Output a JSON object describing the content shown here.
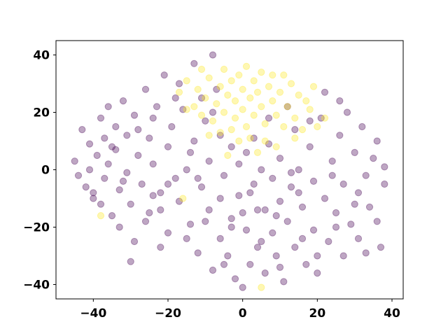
{
  "chart_data": {
    "type": "scatter",
    "title": "",
    "xlabel": "",
    "ylabel": "",
    "xlim": [
      -50,
      43
    ],
    "ylim": [
      -45,
      45
    ],
    "xticks": [
      -40,
      -20,
      0,
      20,
      40
    ],
    "yticks": [
      -40,
      -20,
      0,
      20,
      40
    ],
    "xtick_labels": [
      "−40",
      "−20",
      "0",
      "20",
      "40"
    ],
    "ytick_labels": [
      "−40",
      "−20",
      "0",
      "20",
      "40"
    ],
    "grid": false,
    "point_alpha": 0.35,
    "series": [
      {
        "color": "#440154",
        "points": [
          [
            -45,
            3
          ],
          [
            -44,
            -2
          ],
          [
            -43,
            14
          ],
          [
            -42,
            -6
          ],
          [
            -41,
            9
          ],
          [
            -41,
            0
          ],
          [
            -40,
            -8
          ],
          [
            -39,
            5
          ],
          [
            -38,
            18
          ],
          [
            -38,
            -12
          ],
          [
            -37,
            11
          ],
          [
            -37,
            -3
          ],
          [
            -36,
            22
          ],
          [
            -36,
            2
          ],
          [
            -35,
            -16
          ],
          [
            -34,
            15
          ],
          [
            -34,
            7
          ],
          [
            -33,
            -7
          ],
          [
            -33,
            -20
          ],
          [
            -32,
            24
          ],
          [
            -31,
            12
          ],
          [
            -31,
            -1
          ],
          [
            -30,
            -12
          ],
          [
            -29,
            -25
          ],
          [
            -29,
            19
          ],
          [
            -28,
            5
          ],
          [
            -27,
            -5
          ],
          [
            -26,
            28
          ],
          [
            -26,
            -18
          ],
          [
            -25,
            11
          ],
          [
            -24,
            -9
          ],
          [
            -24,
            2
          ],
          [
            -23,
            22
          ],
          [
            -22,
            -27
          ],
          [
            -22,
            -14
          ],
          [
            -21,
            33
          ],
          [
            -20,
            8
          ],
          [
            -20,
            -22
          ],
          [
            -19,
            15
          ],
          [
            -18,
            -3
          ],
          [
            -17,
            30
          ],
          [
            -17,
            -11
          ],
          [
            -16,
            21
          ],
          [
            -15,
            0
          ],
          [
            -14,
            -19
          ],
          [
            -13,
            37
          ],
          [
            -13,
            10
          ],
          [
            -12,
            -29
          ],
          [
            -11,
            25
          ],
          [
            -11,
            -6
          ],
          [
            -10,
            17
          ],
          [
            -9,
            -14
          ],
          [
            -9,
            3
          ],
          [
            -8,
            40
          ],
          [
            -8,
            -35
          ],
          [
            -7,
            28
          ],
          [
            -6,
            -24
          ],
          [
            -6,
            12
          ],
          [
            -5,
            -2
          ],
          [
            -4,
            -30
          ],
          [
            -3,
            8
          ],
          [
            -3,
            -17
          ],
          [
            -2,
            -38
          ],
          [
            -1,
            2
          ],
          [
            -1,
            -9
          ],
          [
            0,
            -41
          ],
          [
            1,
            6
          ],
          [
            1,
            -21
          ],
          [
            2,
            -33
          ],
          [
            3,
            11
          ],
          [
            3,
            -5
          ],
          [
            4,
            -27
          ],
          [
            5,
            0
          ],
          [
            6,
            -14
          ],
          [
            6,
            -36
          ],
          [
            7,
            9
          ],
          [
            8,
            -22
          ],
          [
            8,
            -3
          ],
          [
            9,
            -30
          ],
          [
            10,
            4
          ],
          [
            10,
            -11
          ],
          [
            11,
            -39
          ],
          [
            12,
            -18
          ],
          [
            13,
            -6
          ],
          [
            14,
            -27
          ],
          [
            14,
            14
          ],
          [
            15,
            0
          ],
          [
            16,
            -13
          ],
          [
            17,
            -33
          ],
          [
            18,
            8
          ],
          [
            19,
            -4
          ],
          [
            19,
            -21
          ],
          [
            20,
            -36
          ],
          [
            21,
            18
          ],
          [
            22,
            -10
          ],
          [
            22,
            27
          ],
          [
            23,
            -25
          ],
          [
            24,
            3
          ],
          [
            25,
            -15
          ],
          [
            26,
            12
          ],
          [
            27,
            -30
          ],
          [
            27,
            -5
          ],
          [
            28,
            20
          ],
          [
            29,
            -19
          ],
          [
            30,
            6
          ],
          [
            31,
            -8
          ],
          [
            31,
            -24
          ],
          [
            32,
            15
          ],
          [
            33,
            -2
          ],
          [
            33,
            -29
          ],
          [
            34,
            -13
          ],
          [
            35,
            4
          ],
          [
            36,
            -18
          ],
          [
            36,
            10
          ],
          [
            37,
            -27
          ],
          [
            38,
            -5
          ],
          [
            38,
            1
          ],
          [
            -30,
            -32
          ],
          [
            -15,
            -24
          ],
          [
            -5,
            -33
          ],
          [
            10,
            -34
          ],
          [
            20,
            -30
          ],
          [
            -40,
            -10
          ],
          [
            -20,
            -5
          ],
          [
            0,
            -15
          ],
          [
            15,
            -8
          ],
          [
            25,
            -20
          ],
          [
            -10,
            -18
          ],
          [
            5,
            -25
          ],
          [
            -25,
            -15
          ],
          [
            30,
            -12
          ],
          [
            -35,
            8
          ],
          [
            12,
            22
          ],
          [
            18,
            17
          ],
          [
            -18,
            25
          ],
          [
            -24,
            18
          ],
          [
            -8,
            20
          ],
          [
            26,
            24
          ],
          [
            -28,
            14
          ],
          [
            -12,
            -3
          ],
          [
            2,
            -8
          ],
          [
            9,
            -16
          ],
          [
            -3,
            -20
          ],
          [
            16,
            -24
          ],
          [
            -6,
            -10
          ],
          [
            4,
            -14
          ],
          [
            -14,
            6
          ],
          [
            24,
            -2
          ],
          [
            -22,
            -8
          ],
          [
            7,
            18
          ],
          [
            -32,
            -4
          ],
          [
            13,
            -1
          ]
        ]
      },
      {
        "color": "#fde725",
        "points": [
          [
            -17,
            27
          ],
          [
            -15,
            31
          ],
          [
            -13,
            22
          ],
          [
            -12,
            28
          ],
          [
            -11,
            19
          ],
          [
            -10,
            25
          ],
          [
            -9,
            32
          ],
          [
            -8,
            17
          ],
          [
            -7,
            23
          ],
          [
            -6,
            29
          ],
          [
            -5,
            35
          ],
          [
            -5,
            20
          ],
          [
            -4,
            26
          ],
          [
            -3,
            31
          ],
          [
            -2,
            18
          ],
          [
            -2,
            24
          ],
          [
            -1,
            33
          ],
          [
            0,
            21
          ],
          [
            0,
            28
          ],
          [
            1,
            36
          ],
          [
            1,
            15
          ],
          [
            2,
            25
          ],
          [
            3,
            31
          ],
          [
            3,
            19
          ],
          [
            4,
            27
          ],
          [
            5,
            34
          ],
          [
            5,
            22
          ],
          [
            6,
            16
          ],
          [
            7,
            29
          ],
          [
            8,
            24
          ],
          [
            8,
            33
          ],
          [
            9,
            19
          ],
          [
            10,
            27
          ],
          [
            11,
            15
          ],
          [
            12,
            22
          ],
          [
            13,
            30
          ],
          [
            14,
            18
          ],
          [
            15,
            26
          ],
          [
            16,
            14
          ],
          [
            18,
            21
          ],
          [
            19,
            29
          ],
          [
            20,
            15
          ],
          [
            22,
            18
          ],
          [
            -3,
            14
          ],
          [
            2,
            11
          ],
          [
            6,
            10
          ],
          [
            9,
            8
          ],
          [
            -6,
            13
          ],
          [
            -1,
            10
          ],
          [
            4,
            6
          ],
          [
            -9,
            12
          ],
          [
            -15,
            21
          ],
          [
            14,
            11
          ],
          [
            11,
            33
          ],
          [
            -4,
            5
          ],
          [
            -16,
            -10
          ],
          [
            -38,
            -16
          ],
          [
            5,
            -41
          ],
          [
            -11,
            35
          ],
          [
            17,
            24
          ]
        ]
      }
    ]
  }
}
